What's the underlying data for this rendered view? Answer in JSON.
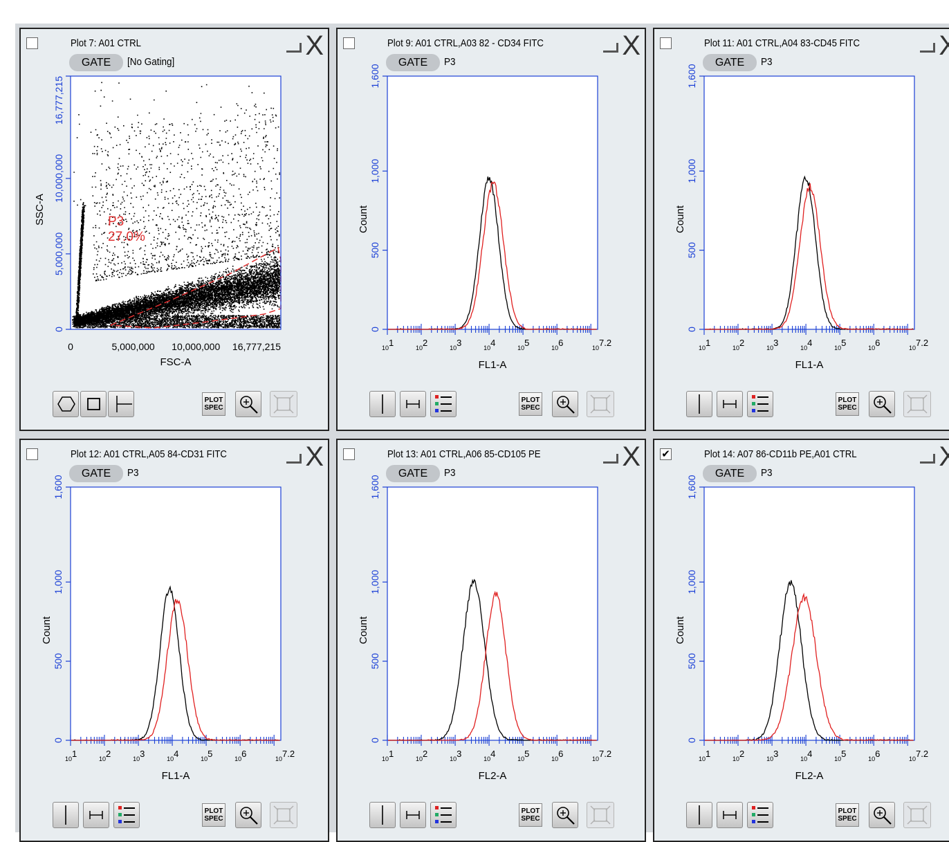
{
  "colors": {
    "axis": "#1a3fd6",
    "gate": "#e03030",
    "ctrl": "#000000",
    "sample": "#e02020"
  },
  "panels": [
    {
      "id": "plot7",
      "title": "Plot 7: A01 CTRL",
      "gate": "[No Gating]",
      "checked": false,
      "kind": "scatter",
      "gate_label": "GATE",
      "tools": [
        "polygon-gate-icon",
        "rectangle-gate-icon",
        "quadrant-gate-icon"
      ],
      "chart_data": {
        "type": "scatter",
        "xlabel": "FSC-A",
        "ylabel": "SSC-A",
        "xlim": [
          0,
          16777215
        ],
        "ylim": [
          0,
          16777215
        ],
        "xticks": [
          "0",
          "5,000,000",
          "10,000,000",
          "16,777,215"
        ],
        "yticks": [
          "0",
          "5,000,000",
          "10,000,000",
          "16,777,215"
        ],
        "gate_name": "P3",
        "gate_pct": "27.0%"
      }
    },
    {
      "id": "plot9",
      "title": "Plot 9: A01 CTRL,A03 82 - CD34 FITC",
      "gate": "P3",
      "checked": false,
      "kind": "hist",
      "gate_label": "GATE",
      "chart_data": {
        "type": "line",
        "xlabel": "FL1-A",
        "ylabel": "Count",
        "ylim": [
          0,
          1600
        ],
        "xlim": [
          1,
          7.2
        ],
        "yticks": [
          "0",
          "500",
          "1,000",
          "1,600"
        ],
        "series": [
          {
            "peak": 4.0,
            "sigma": 0.28,
            "height": 960,
            "color": "ctrl"
          },
          {
            "peak": 4.12,
            "sigma": 0.3,
            "height": 920,
            "color": "sample"
          }
        ]
      }
    },
    {
      "id": "plot11",
      "title": "Plot 11: A01 CTRL,A04 83-CD45 FITC",
      "gate": "P3",
      "checked": false,
      "kind": "hist",
      "gate_label": "GATE",
      "chart_data": {
        "type": "line",
        "xlabel": "FL1-A",
        "ylabel": "Count",
        "ylim": [
          0,
          1600
        ],
        "xlim": [
          1,
          7.2
        ],
        "yticks": [
          "0",
          "500",
          "1,000",
          "1,600"
        ],
        "series": [
          {
            "peak": 4.0,
            "sigma": 0.28,
            "height": 960,
            "color": "ctrl"
          },
          {
            "peak": 4.12,
            "sigma": 0.3,
            "height": 900,
            "color": "sample"
          }
        ]
      }
    },
    {
      "id": "plot12",
      "title": "Plot 12: A01 CTRL,A05 84-CD31 FITC",
      "gate": "P3",
      "checked": false,
      "kind": "hist",
      "gate_label": "GATE",
      "chart_data": {
        "type": "line",
        "xlabel": "FL1-A",
        "ylabel": "Count",
        "ylim": [
          0,
          1600
        ],
        "xlim": [
          1,
          7.2
        ],
        "yticks": [
          "0",
          "500",
          "1,000",
          "1,600"
        ],
        "series": [
          {
            "peak": 3.92,
            "sigma": 0.28,
            "height": 960,
            "color": "ctrl"
          },
          {
            "peak": 4.15,
            "sigma": 0.3,
            "height": 890,
            "color": "sample"
          }
        ]
      }
    },
    {
      "id": "plot13",
      "title": "Plot 13: A01 CTRL,A06 85-CD105 PE",
      "gate": "P3",
      "checked": false,
      "kind": "hist",
      "gate_label": "GATE",
      "chart_data": {
        "type": "line",
        "xlabel": "FL2-A",
        "ylabel": "Count",
        "ylim": [
          0,
          1600
        ],
        "xlim": [
          1,
          7.2
        ],
        "yticks": [
          "0",
          "500",
          "1,000",
          "1,600"
        ],
        "series": [
          {
            "peak": 3.55,
            "sigma": 0.32,
            "height": 1000,
            "color": "ctrl"
          },
          {
            "peak": 4.2,
            "sigma": 0.3,
            "height": 920,
            "color": "sample"
          }
        ]
      }
    },
    {
      "id": "plot14",
      "title": "Plot 14: A07 86-CD11b PE,A01 CTRL",
      "gate": "P3",
      "checked": true,
      "kind": "hist",
      "gate_label": "GATE",
      "chart_data": {
        "type": "line",
        "xlabel": "FL2-A",
        "ylabel": "Count",
        "ylim": [
          0,
          1600
        ],
        "xlim": [
          1,
          7.2
        ],
        "yticks": [
          "0",
          "500",
          "1,000",
          "1,600"
        ],
        "series": [
          {
            "peak": 3.55,
            "sigma": 0.32,
            "height": 1000,
            "color": "ctrl"
          },
          {
            "peak": 3.95,
            "sigma": 0.36,
            "height": 900,
            "color": "sample"
          }
        ]
      }
    }
  ],
  "toolbar": {
    "plot_spec_line1": "PLOT",
    "plot_spec_line2": "SPEC"
  },
  "x_decades": [
    "1",
    "2",
    "3",
    "4",
    "5",
    "6",
    "7.2"
  ]
}
